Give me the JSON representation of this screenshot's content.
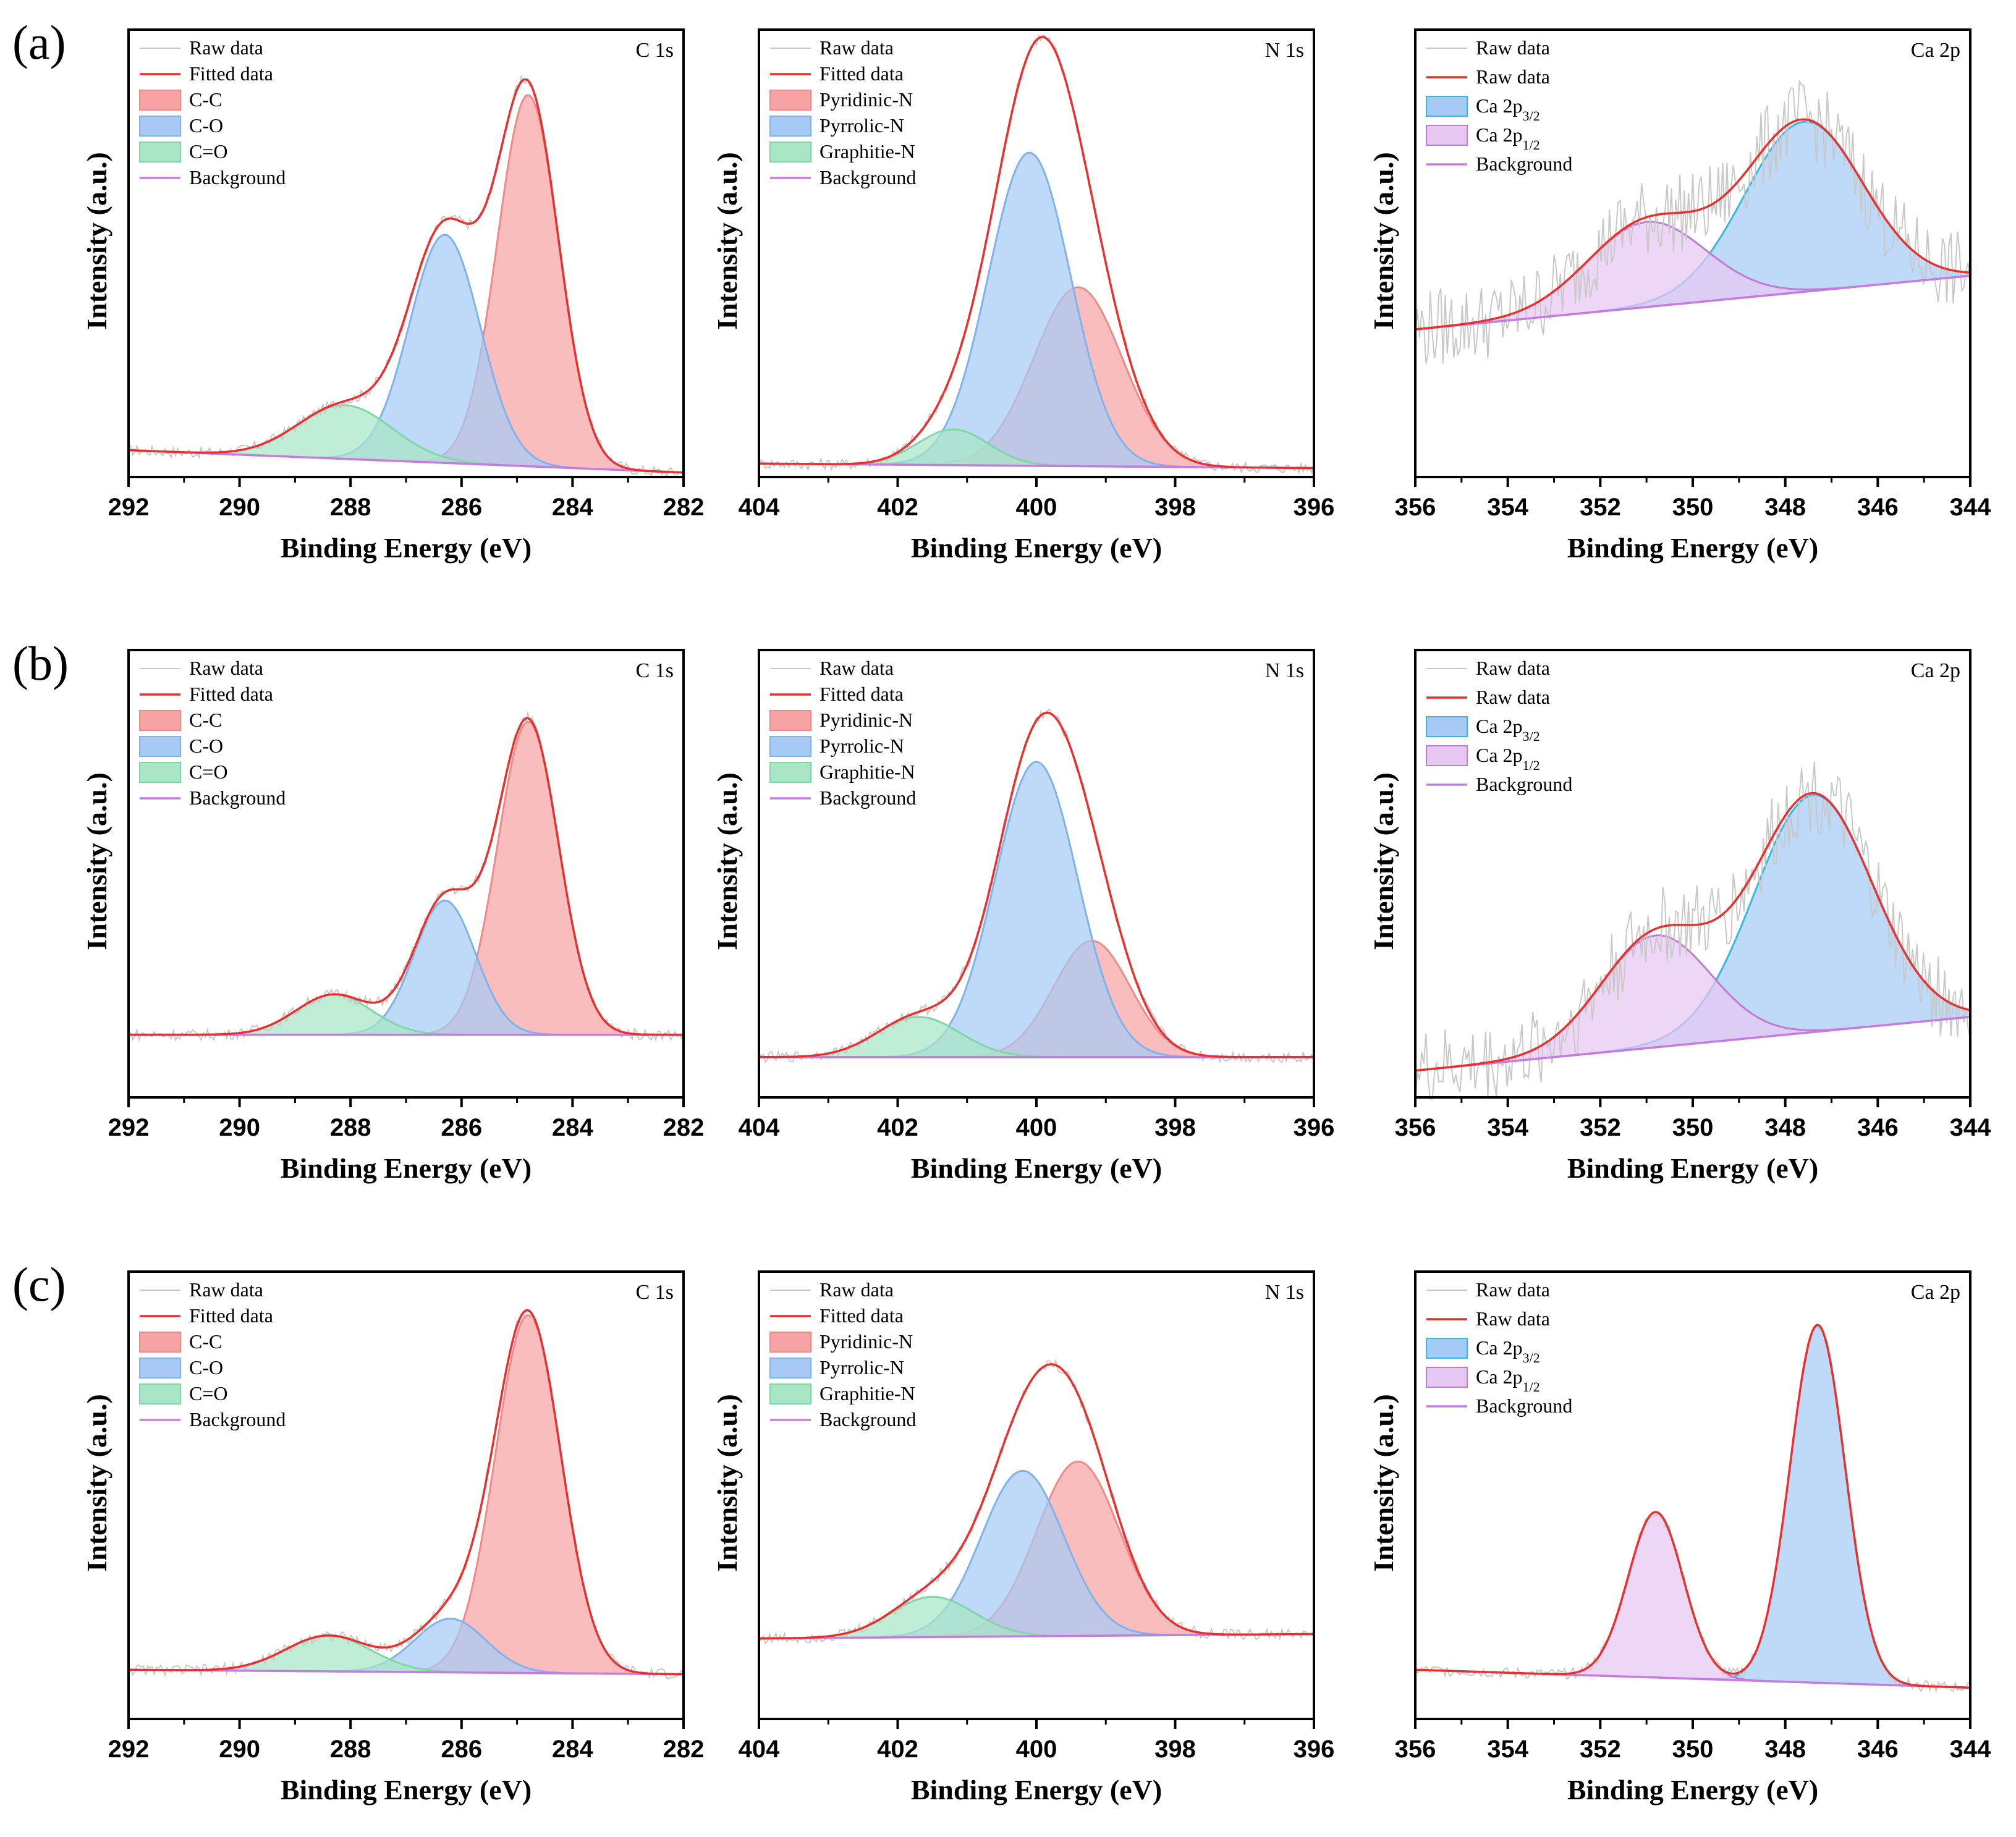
{
  "panel_labels": [
    "(a)",
    "(b)",
    "(c)"
  ],
  "colors": {
    "raw": "#c8c8c8",
    "fit": "#e8302e",
    "red_fill": "#f7a3a3",
    "red_edge": "#f08a8a",
    "blue_fill": "#a6caf5",
    "blue_edge": "#7fb3ee",
    "green_fill": "#a8e6c5",
    "green_edge": "#7fd6a8",
    "purple_fill": "#e7c8f2",
    "purple_edge": "#c07ad8",
    "ca_blue_edge": "#38b8e8",
    "background": "#c77be0"
  },
  "chart_data": [
    {
      "id": "a-c1s",
      "row": 0,
      "col": 0,
      "type": "line",
      "title": "C 1s",
      "xlabel": "Binding Energy (eV)",
      "ylabel": "Intensity (a.u.)",
      "xlim": [
        292,
        282
      ],
      "xticks": [
        "292",
        "290",
        "288",
        "286",
        "284",
        "282"
      ],
      "legend": [
        "Raw data",
        "Fitted data",
        "C-C",
        "C-O",
        "C=O",
        "Background"
      ],
      "baseline": {
        "left": 0.06,
        "right": 0.01
      },
      "peaks": [
        {
          "name": "C-C",
          "center": 284.8,
          "height": 0.83,
          "fwhm": 1.3
        },
        {
          "name": "C-O",
          "center": 286.3,
          "height": 0.51,
          "fwhm": 1.5
        },
        {
          "name": "C=O",
          "center": 288.1,
          "height": 0.12,
          "fwhm": 2.0
        }
      ]
    },
    {
      "id": "a-n1s",
      "row": 0,
      "col": 1,
      "type": "line",
      "title": "N 1s",
      "xlabel": "Binding Energy (eV)",
      "ylabel": "Intensity (a.u.)",
      "xlim": [
        404,
        396
      ],
      "xticks": [
        "404",
        "402",
        "400",
        "398",
        "396"
      ],
      "legend": [
        "Raw data",
        "Fitted data",
        "Pyridinic-N",
        "Pyrrolic-N",
        "Graphitie-N",
        "Background"
      ],
      "baseline": {
        "left": 0.03,
        "right": 0.02
      },
      "peaks": [
        {
          "name": "Pyridinic-N",
          "center": 399.4,
          "height": 0.4,
          "fwhm": 1.5
        },
        {
          "name": "Pyrrolic-N",
          "center": 400.1,
          "height": 0.7,
          "fwhm": 1.4
        },
        {
          "name": "Graphitie-N",
          "center": 401.2,
          "height": 0.08,
          "fwhm": 1.2
        }
      ]
    },
    {
      "id": "a-ca2p",
      "row": 0,
      "col": 2,
      "type": "line",
      "title": "Ca 2p",
      "xlabel": "Binding Energy (eV)",
      "ylabel": "Intensity (a.u.)",
      "xlim": [
        356,
        344
      ],
      "xticks": [
        "356",
        "354",
        "352",
        "350",
        "348",
        "346",
        "344"
      ],
      "legend": [
        "Raw data",
        "Raw data",
        "Ca 2p3/2",
        "Ca 2p1/2",
        "Background"
      ],
      "baseline": {
        "left": 0.33,
        "right": 0.45
      },
      "peaks": [
        {
          "name": "Ca 2p3/2",
          "center": 347.6,
          "height": 0.38,
          "fwhm": 3.0
        },
        {
          "name": "Ca 2p1/2",
          "center": 351.0,
          "height": 0.19,
          "fwhm": 3.0
        }
      ]
    },
    {
      "id": "b-c1s",
      "row": 1,
      "col": 0,
      "type": "line",
      "title": "C 1s",
      "xlabel": "Binding Energy (eV)",
      "ylabel": "Intensity (a.u.)",
      "xlim": [
        292,
        282
      ],
      "xticks": [
        "292",
        "290",
        "288",
        "286",
        "284",
        "282"
      ],
      "legend": [
        "Raw data",
        "Fitted data",
        "C-C",
        "C-O",
        "C=O",
        "Background"
      ],
      "baseline": {
        "left": 0.14,
        "right": 0.14
      },
      "peaks": [
        {
          "name": "C-C",
          "center": 284.8,
          "height": 0.7,
          "fwhm": 1.3
        },
        {
          "name": "C-O",
          "center": 286.3,
          "height": 0.3,
          "fwhm": 1.3
        },
        {
          "name": "C=O",
          "center": 288.3,
          "height": 0.09,
          "fwhm": 1.6
        }
      ]
    },
    {
      "id": "b-n1s",
      "row": 1,
      "col": 1,
      "type": "line",
      "title": "N 1s",
      "xlabel": "Binding Energy (eV)",
      "ylabel": "Intensity (a.u.)",
      "xlim": [
        404,
        396
      ],
      "xticks": [
        "404",
        "402",
        "400",
        "398",
        "396"
      ],
      "legend": [
        "Raw data",
        "Fitted data",
        "Pyridinic-N",
        "Pyrrolic-N",
        "Graphitie-N",
        "Background"
      ],
      "baseline": {
        "left": 0.09,
        "right": 0.09
      },
      "peaks": [
        {
          "name": "Pyridinic-N",
          "center": 399.2,
          "height": 0.26,
          "fwhm": 1.3
        },
        {
          "name": "Pyrrolic-N",
          "center": 400.0,
          "height": 0.66,
          "fwhm": 1.4
        },
        {
          "name": "Graphitie-N",
          "center": 401.7,
          "height": 0.09,
          "fwhm": 1.4
        }
      ]
    },
    {
      "id": "b-ca2p",
      "row": 1,
      "col": 2,
      "type": "line",
      "title": "Ca 2p",
      "xlabel": "Binding Energy (eV)",
      "ylabel": "Intensity (a.u.)",
      "xlim": [
        356,
        344
      ],
      "xticks": [
        "356",
        "354",
        "352",
        "350",
        "348",
        "346",
        "344"
      ],
      "legend": [
        "Raw data",
        "Raw data",
        "Ca 2p3/2",
        "Ca 2p1/2",
        "Background"
      ],
      "baseline": {
        "left": 0.06,
        "right": 0.18
      },
      "peaks": [
        {
          "name": "Ca 2p3/2",
          "center": 347.4,
          "height": 0.53,
          "fwhm": 3.0
        },
        {
          "name": "Ca 2p1/2",
          "center": 350.8,
          "height": 0.25,
          "fwhm": 2.8
        }
      ]
    },
    {
      "id": "c-c1s",
      "row": 2,
      "col": 0,
      "type": "line",
      "title": "C 1s",
      "xlabel": "Binding Energy (eV)",
      "ylabel": "Intensity (a.u.)",
      "xlim": [
        292,
        282
      ],
      "xticks": [
        "292",
        "290",
        "288",
        "286",
        "284",
        "282"
      ],
      "legend": [
        "Raw data",
        "Fitted data",
        "C-C",
        "C-O",
        "C=O",
        "Background"
      ],
      "baseline": {
        "left": 0.11,
        "right": 0.1
      },
      "peaks": [
        {
          "name": "C-C",
          "center": 284.8,
          "height": 0.8,
          "fwhm": 1.4
        },
        {
          "name": "C-O",
          "center": 286.2,
          "height": 0.12,
          "fwhm": 1.5
        },
        {
          "name": "C=O",
          "center": 288.4,
          "height": 0.08,
          "fwhm": 1.8
        }
      ]
    },
    {
      "id": "c-n1s",
      "row": 2,
      "col": 1,
      "type": "line",
      "title": "N 1s",
      "xlabel": "Binding Energy (eV)",
      "ylabel": "Intensity (a.u.)",
      "xlim": [
        404,
        396
      ],
      "xticks": [
        "404",
        "402",
        "400",
        "398",
        "396"
      ],
      "legend": [
        "Raw data",
        "Fitted data",
        "Pyridinic-N",
        "Pyrrolic-N",
        "Graphitie-N",
        "Background"
      ],
      "baseline": {
        "left": 0.18,
        "right": 0.19
      },
      "peaks": [
        {
          "name": "Pyridinic-N",
          "center": 399.4,
          "height": 0.39,
          "fwhm": 1.4
        },
        {
          "name": "Pyrrolic-N",
          "center": 400.2,
          "height": 0.37,
          "fwhm": 1.4
        },
        {
          "name": "Graphitie-N",
          "center": 401.5,
          "height": 0.09,
          "fwhm": 1.4
        }
      ]
    },
    {
      "id": "c-ca2p",
      "row": 2,
      "col": 2,
      "type": "line",
      "title": "Ca 2p",
      "xlabel": "Binding Energy (eV)",
      "ylabel": "Intensity (a.u.)",
      "xlim": [
        356,
        344
      ],
      "xticks": [
        "356",
        "354",
        "352",
        "350",
        "348",
        "346",
        "344"
      ],
      "legend": [
        "Raw data",
        "Raw data",
        "Ca 2p3/2",
        "Ca 2p1/2",
        "Background"
      ],
      "baseline": {
        "left": 0.11,
        "right": 0.07
      },
      "peaks": [
        {
          "name": "Ca 2p3/2",
          "center": 347.3,
          "height": 0.8,
          "fwhm": 1.4
        },
        {
          "name": "Ca 2p1/2",
          "center": 350.8,
          "height": 0.37,
          "fwhm": 1.4
        }
      ]
    }
  ]
}
